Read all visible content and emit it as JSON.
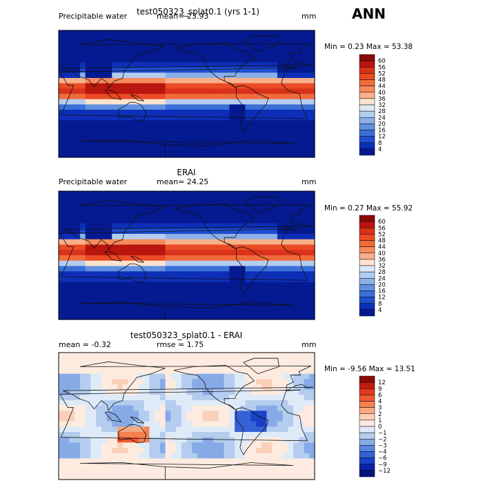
{
  "season": "ANN",
  "panels": [
    {
      "title": "test050323_splat0.1 (yrs 1-1)",
      "left_label": "Precipitable water",
      "mean_label": "mean=",
      "mean_value": "23.93",
      "units": "mm",
      "min_max": "Min =    0.23 Max =   53.38"
    },
    {
      "title": "ERAI",
      "left_label": "Precipitable water",
      "mean_label": "mean=",
      "mean_value": "24.25",
      "units": "mm",
      "min_max": "Min =    0.27 Max =   55.92"
    },
    {
      "title": "test050323_splat0.1 - ERAI",
      "left_label": "mean =   -0.32",
      "mean_label": "rmse =",
      "mean_value": "1.75",
      "units": "mm",
      "min_max": "Min =  -9.56 Max =   13.51"
    }
  ],
  "chart_data": [
    {
      "type": "heatmap",
      "title": "test050323_splat0.1 (yrs 1-1)",
      "variable": "Precipitable water",
      "mean": 23.93,
      "min": 0.23,
      "max": 53.38,
      "units": "mm",
      "colorbar_levels": [
        "60",
        "56",
        "52",
        "48",
        "44",
        "40",
        "36",
        "32",
        "28",
        "24",
        "20",
        "16",
        "12",
        "8",
        "4"
      ],
      "colorbar_colors": [
        "#8a0a0a",
        "#b8160e",
        "#d8321a",
        "#ea4a24",
        "#f26a3a",
        "#f58a5c",
        "#f8b08a",
        "#fde3cf",
        "#dde8f6",
        "#b4cdee",
        "#8ab0e6",
        "#6090e0",
        "#3a6fd8",
        "#1e4fd0",
        "#0d2fb8",
        "#051a90"
      ]
    },
    {
      "type": "heatmap",
      "title": "ERAI",
      "variable": "Precipitable water",
      "mean": 24.25,
      "min": 0.27,
      "max": 55.92,
      "units": "mm",
      "colorbar_levels": [
        "60",
        "56",
        "52",
        "48",
        "44",
        "40",
        "36",
        "32",
        "28",
        "24",
        "20",
        "16",
        "12",
        "8",
        "4"
      ],
      "colorbar_colors": [
        "#8a0a0a",
        "#b8160e",
        "#d8321a",
        "#ea4a24",
        "#f26a3a",
        "#f58a5c",
        "#f8b08a",
        "#fde3cf",
        "#dde8f6",
        "#b4cdee",
        "#8ab0e6",
        "#6090e0",
        "#3a6fd8",
        "#1e4fd0",
        "#0d2fb8",
        "#051a90"
      ]
    },
    {
      "type": "heatmap",
      "title": "test050323_splat0.1 - ERAI",
      "mean": -0.32,
      "rmse": 1.75,
      "min": -9.56,
      "max": 13.51,
      "units": "mm",
      "colorbar_levels": [
        "12",
        "9",
        "6",
        "4",
        "3",
        "2",
        "1",
        "0",
        "−1",
        "−2",
        "−3",
        "−4",
        "−6",
        "−9",
        "−12"
      ],
      "colorbar_colors": [
        "#8a0a0a",
        "#c01c10",
        "#e03a1e",
        "#f05a30",
        "#f58050",
        "#f8a882",
        "#fbd0b8",
        "#fdebe0",
        "#dfeaf8",
        "#b4cdee",
        "#86aae6",
        "#5a86de",
        "#3562d6",
        "#1a40c8",
        "#0a24a8",
        "#04147e"
      ]
    }
  ]
}
